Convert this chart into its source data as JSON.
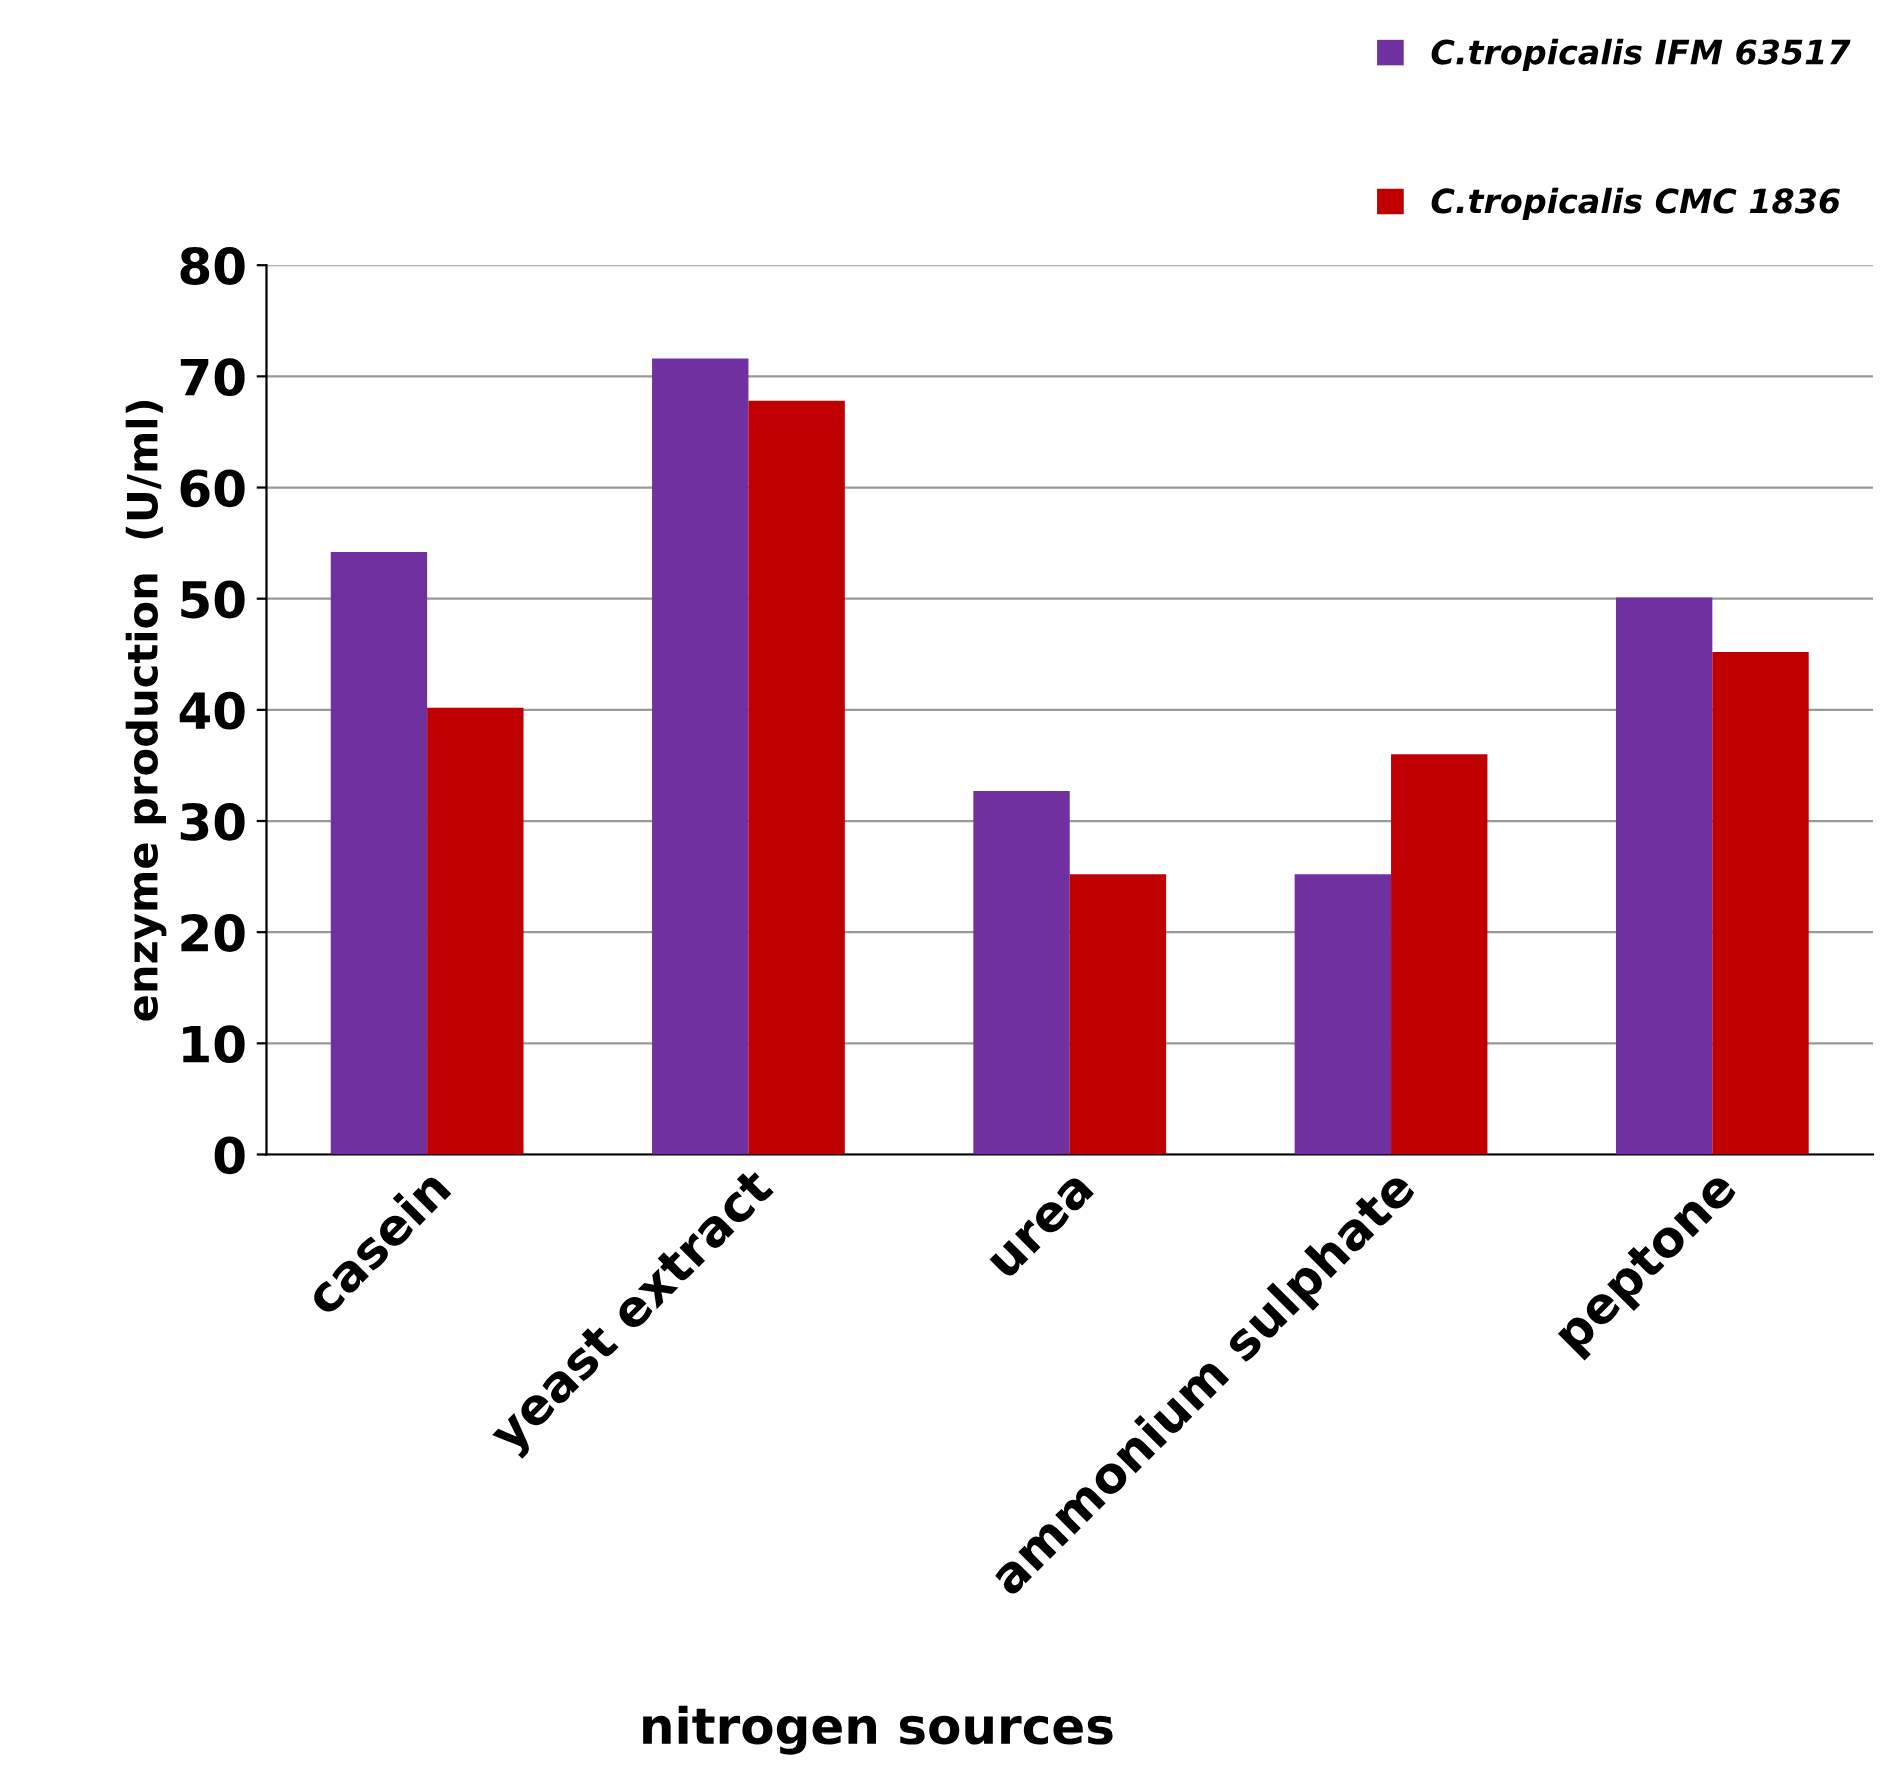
{
  "chart_data": {
    "type": "bar",
    "xlabel": "nitrogen sources",
    "ylabel": "enzyme production  (U/ml)",
    "categories": [
      "casein",
      "yeast extract",
      "urea",
      "ammonium sulphate",
      "peptone"
    ],
    "series": [
      {
        "name": "C.tropicalis IFM 63517",
        "color": "#7030a0",
        "values": [
          54.2,
          71.6,
          32.7,
          25.2,
          50.1
        ]
      },
      {
        "name": "C.tropicalis CMC 1836",
        "color": "#c00000",
        "values": [
          40.2,
          67.8,
          25.2,
          36.0,
          45.2
        ]
      }
    ],
    "ylim": [
      0,
      80
    ],
    "yticks": [
      0,
      10,
      20,
      30,
      40,
      50,
      60,
      70,
      80
    ],
    "grid": "y",
    "legend": "top right"
  }
}
